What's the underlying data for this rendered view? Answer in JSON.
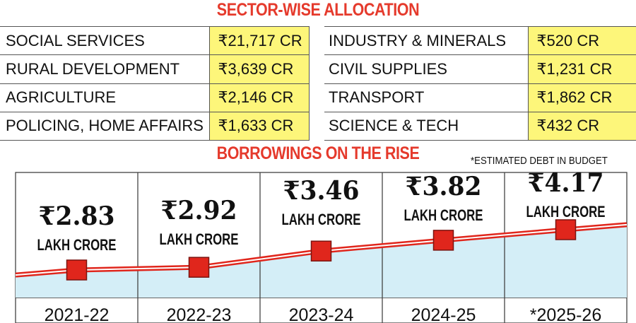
{
  "sections": {
    "allocation_title": "SECTOR-WISE ALLOCATION",
    "borrowings_title": "BORROWINGS ON THE RISE",
    "note": "*ESTIMATED DEBT IN BUDGET"
  },
  "allocation": {
    "rows": [
      {
        "left_label": "SOCIAL SERVICES",
        "left_value": "₹21,717 CR",
        "right_label": "INDUSTRY & MINERALS",
        "right_value": "₹520 CR"
      },
      {
        "left_label": "RURAL DEVELOPMENT",
        "left_value": "₹3,639 CR",
        "right_label": "CIVIL SUPPLIES",
        "right_value": "₹1,231 CR"
      },
      {
        "left_label": "AGRICULTURE",
        "left_value": "₹2,146 CR",
        "right_label": "TRANSPORT",
        "right_value": "₹1,862 CR"
      },
      {
        "left_label": "POLICING, HOME AFFAIRS",
        "left_value": "₹1,633 CR",
        "right_label": "SCIENCE & TECH",
        "right_value": "₹432 CR"
      }
    ]
  },
  "chart_data": {
    "type": "line",
    "title": "BORROWINGS ON THE RISE",
    "categories": [
      "2021-22",
      "2022-23",
      "2023-24",
      "2024-25",
      "*2025-26"
    ],
    "values": [
      2.83,
      2.92,
      3.46,
      3.82,
      4.17
    ],
    "value_labels": [
      "₹2.83",
      "₹2.92",
      "₹3.46",
      "₹3.82",
      "₹4.17"
    ],
    "unit_label": "LAKH CRORE",
    "ylim": [
      2.5,
      4.5
    ],
    "grid": false,
    "colors": {
      "line": "#e0261c",
      "marker": "#e0261c",
      "area": "#d4eef7",
      "highlight": "#fdf67a"
    }
  }
}
